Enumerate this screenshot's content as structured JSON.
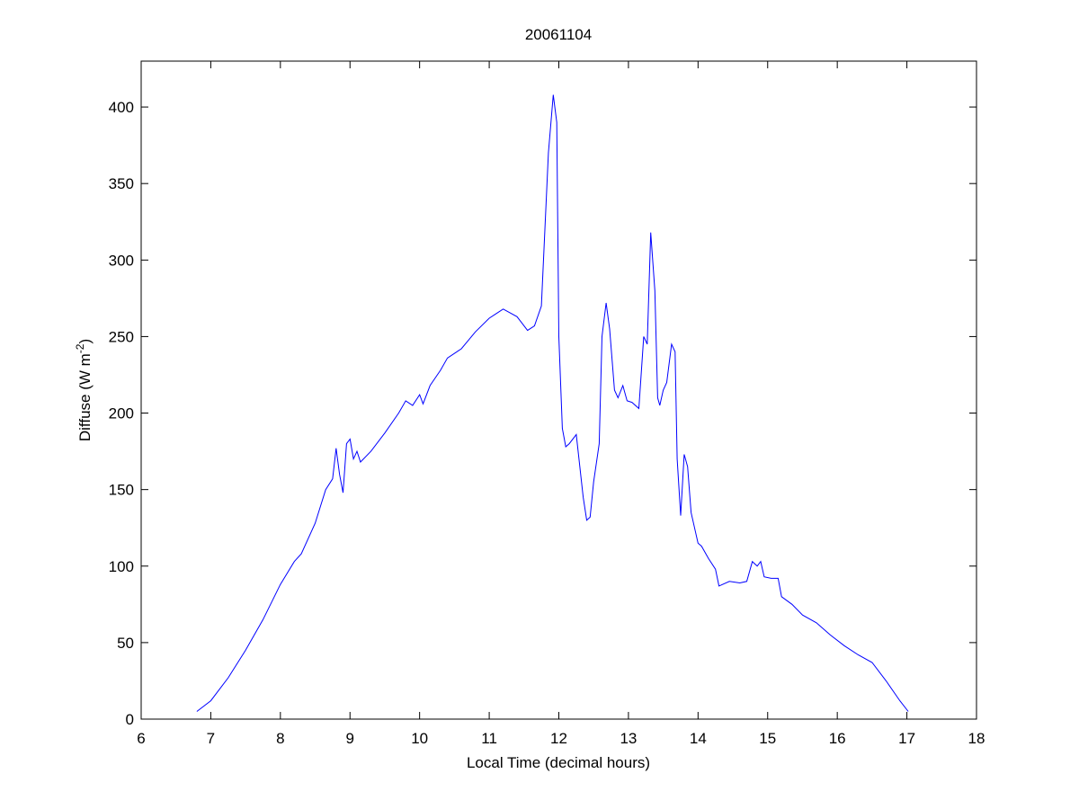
{
  "chart_data": {
    "type": "line",
    "title": "20061104",
    "xlabel": "Local Time (decimal hours)",
    "ylabel": [
      "Diffuse (W m",
      "-2",
      ")"
    ],
    "xlim": [
      6,
      18
    ],
    "xticks": [
      6,
      7,
      8,
      9,
      10,
      11,
      12,
      13,
      14,
      15,
      16,
      17,
      18
    ],
    "ylim": [
      0,
      430
    ],
    "yticks": [
      0,
      50,
      100,
      150,
      200,
      250,
      300,
      350,
      400
    ],
    "grid": false,
    "series": [
      {
        "color": "#0000ff",
        "x": [
          6.8,
          7.0,
          7.25,
          7.5,
          7.75,
          8.0,
          8.2,
          8.3,
          8.5,
          8.65,
          8.75,
          8.8,
          8.85,
          8.9,
          8.95,
          9.0,
          9.05,
          9.1,
          9.15,
          9.3,
          9.5,
          9.7,
          9.8,
          9.9,
          10.0,
          10.05,
          10.15,
          10.3,
          10.4,
          10.6,
          10.8,
          11.0,
          11.1,
          11.2,
          11.4,
          11.55,
          11.65,
          11.75,
          11.8,
          11.85,
          11.92,
          11.97,
          12.0,
          12.05,
          12.1,
          12.15,
          12.25,
          12.35,
          12.4,
          12.45,
          12.5,
          12.58,
          12.62,
          12.68,
          12.73,
          12.8,
          12.85,
          12.92,
          12.98,
          13.05,
          13.15,
          13.22,
          13.27,
          13.32,
          13.38,
          13.42,
          13.45,
          13.5,
          13.55,
          13.62,
          13.67,
          13.7,
          13.75,
          13.8,
          13.85,
          13.9,
          14.0,
          14.05,
          14.15,
          14.25,
          14.3,
          14.45,
          14.6,
          14.7,
          14.78,
          14.85,
          14.9,
          14.95,
          15.05,
          15.15,
          15.2,
          15.35,
          15.5,
          15.7,
          15.9,
          16.1,
          16.3,
          16.5,
          16.7,
          16.9,
          17.02
        ],
        "values": [
          5,
          12,
          27,
          45,
          65,
          88,
          103,
          108,
          128,
          150,
          157,
          177,
          160,
          148,
          180,
          183,
          170,
          175,
          168,
          175,
          187,
          200,
          208,
          205,
          212,
          206,
          218,
          228,
          236,
          242,
          253,
          262,
          265,
          268,
          263,
          254,
          257,
          270,
          320,
          370,
          408,
          390,
          250,
          190,
          178,
          180,
          186,
          145,
          130,
          132,
          155,
          180,
          250,
          272,
          255,
          215,
          210,
          218,
          208,
          207,
          203,
          250,
          245,
          318,
          280,
          210,
          205,
          215,
          220,
          245,
          240,
          170,
          133,
          173,
          165,
          135,
          115,
          113,
          105,
          98,
          87,
          90,
          89,
          90,
          103,
          100,
          103,
          93,
          92,
          92,
          80,
          75,
          68,
          63,
          55,
          48,
          42,
          37,
          25,
          12,
          5
        ]
      }
    ]
  }
}
